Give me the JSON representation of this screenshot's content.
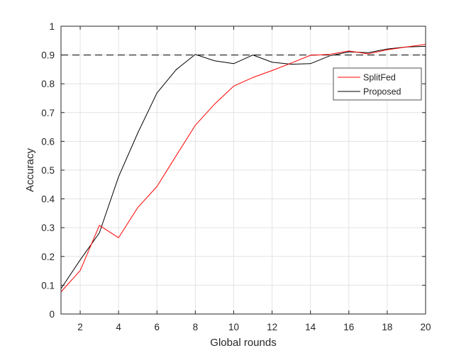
{
  "chart_data": {
    "type": "line",
    "xlabel": "Global rounds",
    "ylabel": "Accuracy",
    "xlim": [
      1,
      20
    ],
    "ylim": [
      0,
      1
    ],
    "xticks": [
      2,
      4,
      6,
      8,
      10,
      12,
      14,
      16,
      18,
      20
    ],
    "yticks": [
      0,
      0.1,
      0.2,
      0.3,
      0.4,
      0.5,
      0.6,
      0.7,
      0.8,
      0.9,
      1
    ],
    "ytick_labels": [
      "0",
      "0.1",
      "0.2",
      "0.3",
      "0.4",
      "0.5",
      "0.6",
      "0.7",
      "0.8",
      "0.9",
      "1"
    ],
    "grid": true,
    "legend_position": "top-right",
    "reference_line": {
      "y": 0.9,
      "style": "dashed",
      "color": "#000000"
    },
    "x": [
      1,
      2,
      3,
      4,
      5,
      6,
      7,
      8,
      9,
      10,
      11,
      12,
      13,
      14,
      15,
      16,
      17,
      18,
      19,
      20
    ],
    "series": [
      {
        "name": "SplitFed",
        "color": "#ff0000",
        "values": [
          0.077,
          0.151,
          0.308,
          0.265,
          0.37,
          0.443,
          0.55,
          0.656,
          0.729,
          0.792,
          0.822,
          0.846,
          0.872,
          0.899,
          0.902,
          0.914,
          0.904,
          0.918,
          0.928,
          0.937
        ]
      },
      {
        "name": "Proposed",
        "color": "#000000",
        "values": [
          0.088,
          0.188,
          0.282,
          0.477,
          0.629,
          0.768,
          0.849,
          0.902,
          0.88,
          0.87,
          0.9,
          0.875,
          0.868,
          0.87,
          0.897,
          0.911,
          0.908,
          0.921,
          0.928,
          0.93
        ]
      }
    ]
  }
}
